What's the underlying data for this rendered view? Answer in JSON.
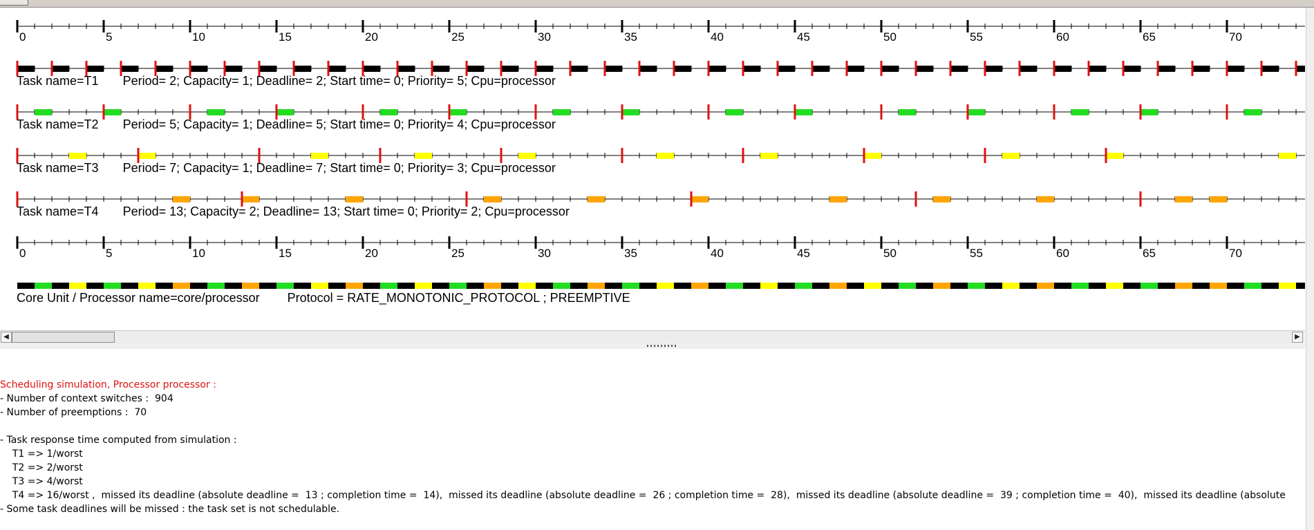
{
  "timeline": {
    "max_time": 76,
    "tick_labels": [
      "0",
      "5",
      "10",
      "15",
      "20",
      "25",
      "30",
      "35",
      "40",
      "45",
      "50",
      "55",
      "60",
      "65",
      "70"
    ],
    "tasks": [
      {
        "name": "T1",
        "label": "Task name=T1       Period= 2; Capacity= 1; Deadline= 2; Start time= 0; Priority= 5; Cpu=processor",
        "color": "#000000",
        "period": 2,
        "capacity": 1,
        "deadline": 2,
        "start_time": 0,
        "priority": 5,
        "cpu": "processor",
        "releases": [
          0,
          2,
          4,
          6,
          8,
          10,
          12,
          14,
          16,
          18,
          20,
          22,
          24,
          26,
          28,
          30,
          32,
          34,
          36,
          38,
          40,
          42,
          44,
          46,
          48,
          50,
          52,
          54,
          56,
          58,
          60,
          62,
          64,
          66,
          68,
          70,
          72,
          74
        ],
        "executions": [
          [
            0,
            1
          ],
          [
            2,
            3
          ],
          [
            4,
            5
          ],
          [
            6,
            7
          ],
          [
            8,
            9
          ],
          [
            10,
            11
          ],
          [
            12,
            13
          ],
          [
            14,
            15
          ],
          [
            16,
            17
          ],
          [
            18,
            19
          ],
          [
            20,
            21
          ],
          [
            22,
            23
          ],
          [
            24,
            25
          ],
          [
            26,
            27
          ],
          [
            28,
            29
          ],
          [
            30,
            31
          ],
          [
            32,
            33
          ],
          [
            34,
            35
          ],
          [
            36,
            37
          ],
          [
            38,
            39
          ],
          [
            40,
            41
          ],
          [
            42,
            43
          ],
          [
            44,
            45
          ],
          [
            46,
            47
          ],
          [
            48,
            49
          ],
          [
            50,
            51
          ],
          [
            52,
            53
          ],
          [
            54,
            55
          ],
          [
            56,
            57
          ],
          [
            58,
            59
          ],
          [
            60,
            61
          ],
          [
            62,
            63
          ],
          [
            64,
            65
          ],
          [
            66,
            67
          ],
          [
            68,
            69
          ],
          [
            70,
            71
          ],
          [
            72,
            73
          ],
          [
            74,
            75
          ]
        ]
      },
      {
        "name": "T2",
        "label": "Task name=T2       Period= 5; Capacity= 1; Deadline= 5; Start time= 0; Priority= 4; Cpu=processor",
        "color": "#22dd22",
        "period": 5,
        "capacity": 1,
        "deadline": 5,
        "start_time": 0,
        "priority": 4,
        "cpu": "processor",
        "releases": [
          0,
          5,
          10,
          15,
          20,
          25,
          30,
          35,
          40,
          45,
          50,
          55,
          60,
          65,
          70,
          75
        ],
        "executions": [
          [
            1,
            2
          ],
          [
            5,
            6
          ],
          [
            11,
            12
          ],
          [
            15,
            16
          ],
          [
            21,
            22
          ],
          [
            25,
            26
          ],
          [
            31,
            32
          ],
          [
            35,
            36
          ],
          [
            41,
            42
          ],
          [
            45,
            46
          ],
          [
            51,
            52
          ],
          [
            55,
            56
          ],
          [
            61,
            62
          ],
          [
            65,
            66
          ],
          [
            71,
            72
          ]
        ]
      },
      {
        "name": "T3",
        "label": "Task name=T3       Period= 7; Capacity= 1; Deadline= 7; Start time= 0; Priority= 3; Cpu=processor",
        "color": "#ffff00",
        "period": 7,
        "capacity": 1,
        "deadline": 7,
        "start_time": 0,
        "priority": 3,
        "cpu": "processor",
        "releases": [
          0,
          7,
          14,
          21,
          28,
          35,
          42,
          49,
          56,
          63
        ],
        "executions": [
          [
            3,
            4
          ],
          [
            7,
            8
          ],
          [
            17,
            18
          ],
          [
            23,
            24
          ],
          [
            29,
            30
          ],
          [
            37,
            38
          ],
          [
            43,
            44
          ],
          [
            49,
            50
          ],
          [
            57,
            58
          ],
          [
            63,
            64
          ],
          [
            73,
            74
          ]
        ]
      },
      {
        "name": "T4",
        "label": "Task name=T4       Period= 13; Capacity= 2; Deadline= 13; Start time= 0; Priority= 2; Cpu=processor",
        "color": "#ffa500",
        "period": 13,
        "capacity": 2,
        "deadline": 13,
        "start_time": 0,
        "priority": 2,
        "cpu": "processor",
        "releases": [
          0,
          13,
          26,
          39,
          52,
          65
        ],
        "executions": [
          [
            9,
            10
          ],
          [
            13,
            14
          ],
          [
            19,
            20
          ],
          [
            27,
            28
          ],
          [
            33,
            34
          ],
          [
            39,
            40
          ],
          [
            47,
            48
          ],
          [
            53,
            54
          ],
          [
            59,
            60
          ],
          [
            67,
            68
          ],
          [
            69,
            70
          ]
        ]
      }
    ],
    "core_label": "Core Unit / Processor name=core/processor        Protocol = RATE_MONOTONIC_PROTOCOL ; PREEMPTIVE"
  },
  "log": {
    "title": "Scheduling simulation, Processor processor :",
    "lines": [
      "- Number of context switches :  904",
      "- Number of preemptions :  70",
      "",
      "- Task response time computed from simulation :",
      "    T1 => 1/worst",
      "    T2 => 2/worst",
      "    T3 => 4/worst",
      "    T4 => 16/worst ,  missed its deadline (absolute deadline =  13 ; completion time =  14),  missed its deadline (absolute deadline =  26 ; completion time =  28),  missed its deadline (absolute deadline =  39 ; completion time =  40),  missed its deadline (absolute",
      "- Some task deadlines will be missed : the task set is not schedulable."
    ]
  }
}
